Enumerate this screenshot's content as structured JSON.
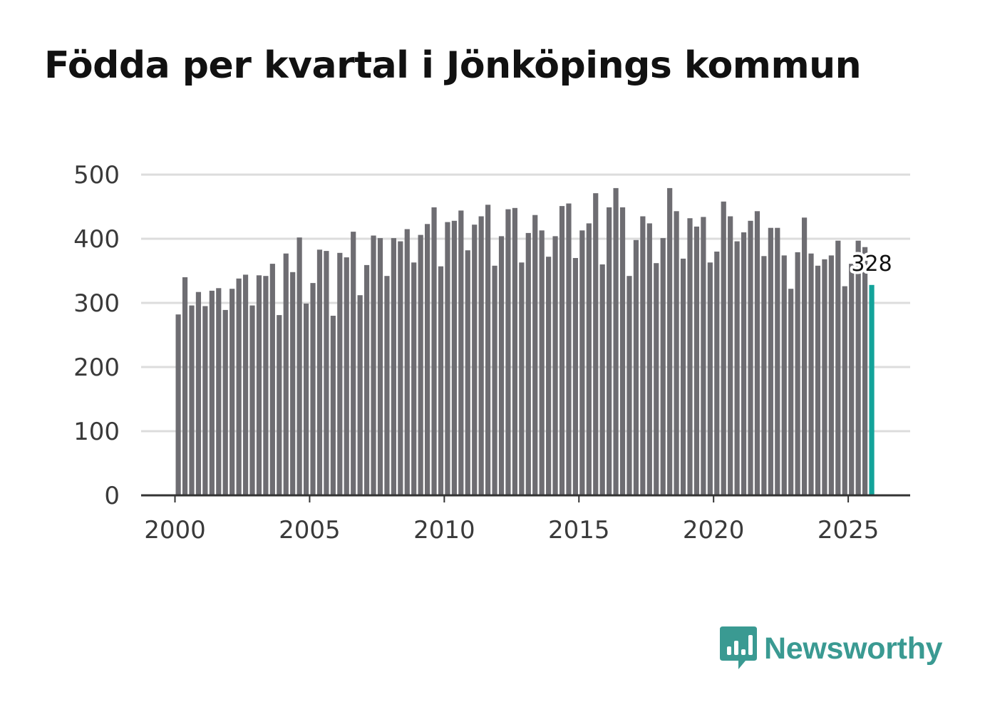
{
  "chart_data": {
    "type": "bar",
    "title": "Födda per kvartal i Jönköpings kommun",
    "xlabel": "",
    "ylabel": "",
    "ylim": [
      0,
      500
    ],
    "yticks": [
      "0",
      "100",
      "200",
      "300",
      "400",
      "500"
    ],
    "xticks": [
      "2000",
      "2005",
      "2010",
      "2015",
      "2020",
      "2025"
    ],
    "first_quarter": "2000 Q1",
    "grid": true,
    "values": [
      282,
      340,
      296,
      317,
      295,
      319,
      323,
      289,
      322,
      338,
      344,
      296,
      343,
      342,
      361,
      281,
      377,
      348,
      402,
      299,
      331,
      383,
      381,
      280,
      378,
      371,
      411,
      312,
      359,
      405,
      401,
      342,
      401,
      396,
      415,
      363,
      406,
      423,
      449,
      357,
      426,
      428,
      444,
      382,
      422,
      435,
      453,
      358,
      404,
      446,
      448,
      363,
      409,
      437,
      413,
      372,
      404,
      451,
      455,
      370,
      413,
      424,
      471,
      360,
      449,
      479,
      449,
      342,
      398,
      435,
      424,
      362,
      401,
      479,
      443,
      369,
      432,
      419,
      434,
      363,
      380,
      458,
      435,
      396,
      410,
      428,
      443,
      373,
      417,
      417,
      374,
      322,
      379,
      433,
      377,
      358,
      368,
      374,
      397,
      326,
      361,
      397,
      387,
      328
    ],
    "highlight": {
      "value_label": "328",
      "color": "#13a39a"
    },
    "bar_color": "#6e6d72"
  },
  "brand": {
    "name": "Newsworthy",
    "icon": "bar-chart-speech-bubble-icon",
    "color": "#3a9a92"
  }
}
